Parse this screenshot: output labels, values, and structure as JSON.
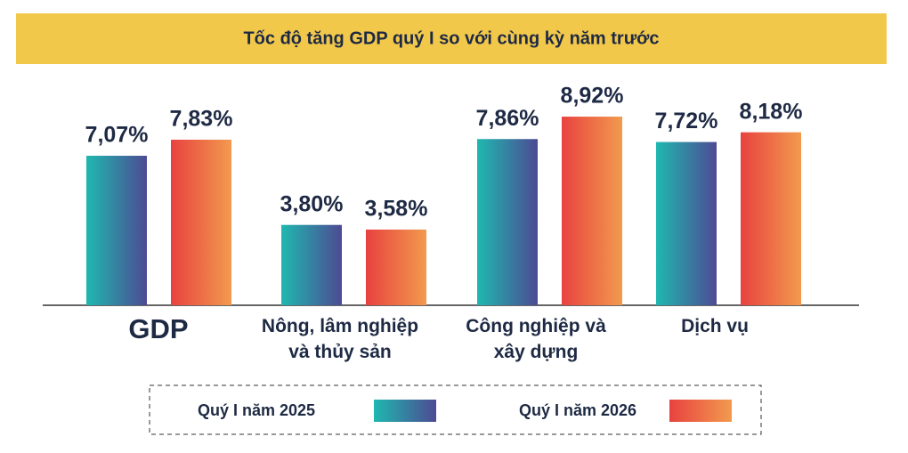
{
  "chart_data": {
    "type": "bar",
    "title": "Tốc độ tăng GDP quý I so với cùng kỳ năm trước",
    "categories": [
      "GDP",
      "Nông, lâm nghiệp và thủy sản",
      "Công nghiệp và xây dựng",
      "Dịch vụ"
    ],
    "series": [
      {
        "name": "Quý I năm 2025",
        "colors": [
          "#1fb8b0",
          "#4d4a93"
        ],
        "values": [
          7.07,
          3.8,
          7.86,
          7.72
        ],
        "value_labels": [
          "7,07%",
          "3,80%",
          "7,86%",
          "7,72%"
        ]
      },
      {
        "name": "Quý I năm 2026",
        "colors": [
          "#e8423f",
          "#f29a4e"
        ],
        "values": [
          7.83,
          3.58,
          8.92,
          8.18
        ],
        "value_labels": [
          "7,83%",
          "3,58%",
          "8,92%",
          "8,18%"
        ]
      }
    ],
    "ylim": [
      0,
      10
    ]
  }
}
